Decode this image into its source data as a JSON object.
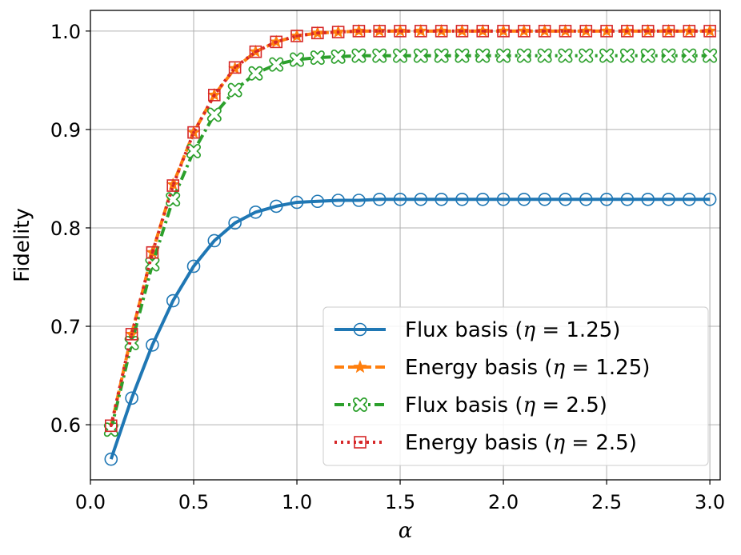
{
  "chart_data": {
    "type": "line",
    "xlabel": "α",
    "ylabel": "Fidelity",
    "xlim": [
      0.0,
      3.05
    ],
    "ylim": [
      0.544,
      1.021
    ],
    "xticks": [
      "0.0",
      "0.5",
      "1.0",
      "1.5",
      "2.0",
      "2.5",
      "3.0"
    ],
    "yticks": [
      "0.6",
      "0.7",
      "0.8",
      "0.9",
      "1.0"
    ],
    "grid": true,
    "legend_position": "bottom-right",
    "x": [
      0.1,
      0.2,
      0.3,
      0.4,
      0.5,
      0.6,
      0.7,
      0.8,
      0.9,
      1.0,
      1.1,
      1.2,
      1.3,
      1.4,
      1.5,
      1.6,
      1.7,
      1.8,
      1.9,
      2.0,
      2.1,
      2.2,
      2.3,
      2.4,
      2.5,
      2.6,
      2.7,
      2.8,
      2.9,
      3.0
    ],
    "series": [
      {
        "name": "Flux basis",
        "eta": "1.25",
        "color": "#1f77b4",
        "linestyle": "solid",
        "marker": "circle",
        "values": [
          0.565,
          0.627,
          0.681,
          0.726,
          0.761,
          0.787,
          0.805,
          0.816,
          0.822,
          0.826,
          0.827,
          0.828,
          0.828,
          0.829,
          0.829,
          0.829,
          0.829,
          0.829,
          0.829,
          0.829,
          0.829,
          0.829,
          0.829,
          0.829,
          0.829,
          0.829,
          0.829,
          0.829,
          0.829,
          0.829
        ]
      },
      {
        "name": "Energy basis",
        "eta": "1.25",
        "color": "#ff7f0e",
        "linestyle": "dashed",
        "marker": "star",
        "values": [
          0.598,
          0.692,
          0.775,
          0.844,
          0.897,
          0.935,
          0.962,
          0.979,
          0.989,
          0.995,
          0.998,
          0.999,
          1.0,
          1.0,
          1.0,
          1.0,
          1.0,
          1.0,
          1.0,
          1.0,
          1.0,
          1.0,
          1.0,
          1.0,
          1.0,
          1.0,
          1.0,
          1.0,
          1.0,
          1.0
        ]
      },
      {
        "name": "Flux basis",
        "eta": "2.5",
        "color": "#2ca02c",
        "linestyle": "dashdot",
        "marker": "x-circle",
        "values": [
          0.595,
          0.683,
          0.763,
          0.829,
          0.878,
          0.915,
          0.94,
          0.957,
          0.966,
          0.971,
          0.973,
          0.974,
          0.975,
          0.975,
          0.975,
          0.975,
          0.975,
          0.975,
          0.975,
          0.975,
          0.975,
          0.975,
          0.975,
          0.975,
          0.975,
          0.975,
          0.975,
          0.975,
          0.975,
          0.975
        ]
      },
      {
        "name": "Energy basis",
        "eta": "2.5",
        "color": "#d62728",
        "linestyle": "dotted",
        "marker": "square-dot",
        "values": [
          0.599,
          0.692,
          0.775,
          0.843,
          0.897,
          0.935,
          0.963,
          0.979,
          0.989,
          0.995,
          0.998,
          0.999,
          1.0,
          1.0,
          1.0,
          1.0,
          1.0,
          1.0,
          1.0,
          1.0,
          1.0,
          1.0,
          1.0,
          1.0,
          1.0,
          1.0,
          1.0,
          1.0,
          1.0,
          1.0
        ]
      }
    ]
  },
  "legend": {
    "symbol": "η",
    "equals": "=",
    "open": "(",
    "close": ")"
  }
}
